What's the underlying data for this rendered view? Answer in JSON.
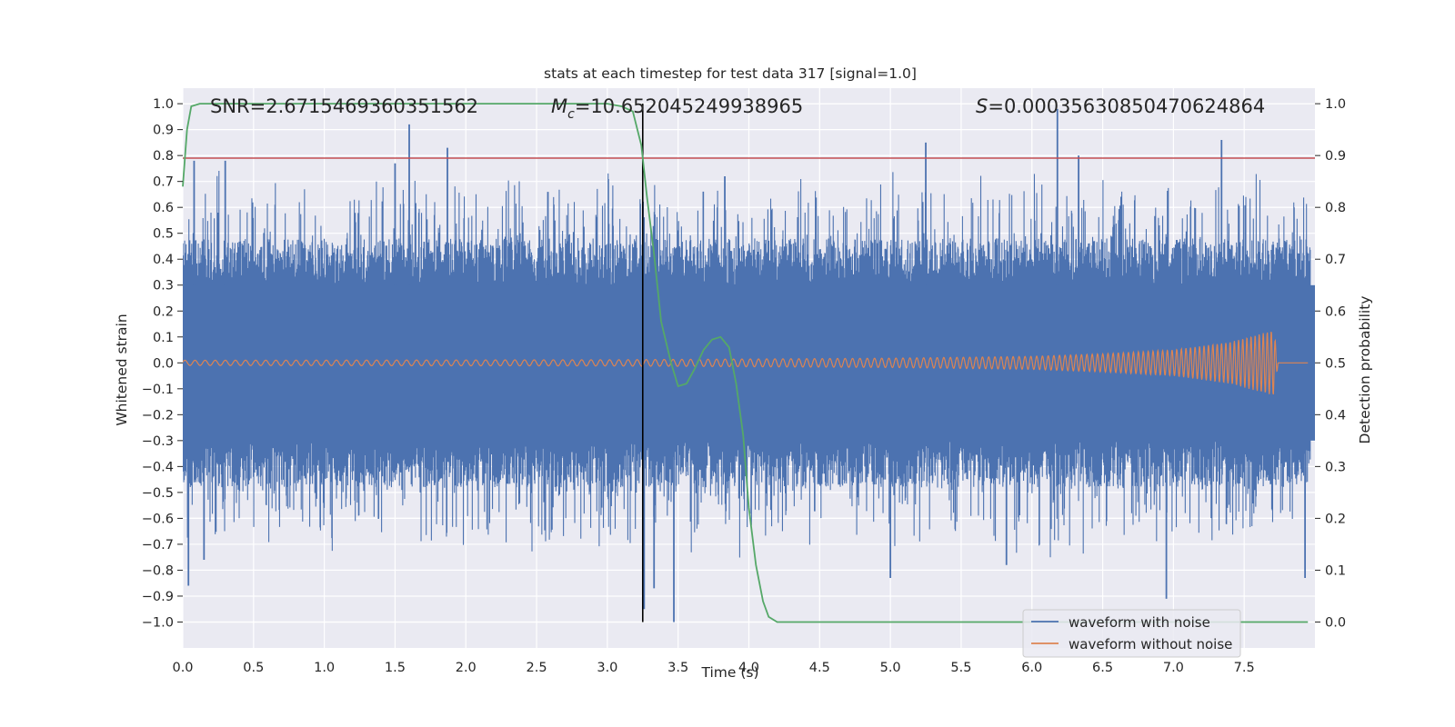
{
  "chart_data": {
    "type": "line",
    "title": "stats at each timestep for test data 317 [signal=1.0]",
    "xlabel": "Time (s)",
    "ylabel_left": "Whitened strain",
    "ylabel_right": "Detection probability",
    "xlim": [
      0.0,
      8.0
    ],
    "ylim_left": [
      -1.1,
      1.06
    ],
    "ylim_right": [
      -0.05,
      1.03
    ],
    "xticks": [
      0.0,
      0.5,
      1.0,
      1.5,
      2.0,
      2.5,
      3.0,
      3.5,
      4.0,
      4.5,
      5.0,
      5.5,
      6.0,
      6.5,
      7.0,
      7.5
    ],
    "yticks_left": [
      1.0,
      0.9,
      0.8,
      0.7,
      0.6,
      0.5,
      0.4,
      0.3,
      0.2,
      0.1,
      0.0,
      -0.1,
      -0.2,
      -0.3,
      -0.4,
      -0.5,
      -0.6,
      -0.7,
      -0.8,
      -0.9,
      -1.0
    ],
    "yticks_right": [
      1.0,
      0.9,
      0.8,
      0.7,
      0.6,
      0.5,
      0.4,
      0.3,
      0.2,
      0.1,
      0.0
    ],
    "grid": true,
    "annotations": {
      "snr": "SNR=2.6715469360351562",
      "mc_symbol": "M",
      "mc_sub": "c",
      "mc_value": "=10.652045249938965",
      "s_symbol": "S",
      "s_value": "=0.0003563085047062486​4"
    },
    "legend": {
      "placement": "bottom-right",
      "entries": [
        "waveform with noise",
        "waveform without noise"
      ]
    },
    "series": [
      {
        "name": "waveform with noise",
        "axis": "left",
        "color": "#4c72b0",
        "note_peaks": [
          [
            0.04,
            -0.86
          ],
          [
            0.08,
            0.78
          ],
          [
            0.15,
            -0.76
          ],
          [
            0.3,
            0.78
          ],
          [
            1.5,
            0.77
          ],
          [
            1.6,
            0.92
          ],
          [
            1.87,
            0.83
          ],
          [
            2.58,
            0.66
          ],
          [
            3.26,
            -0.95
          ],
          [
            3.33,
            -0.87
          ],
          [
            3.47,
            -1.0
          ],
          [
            3.83,
            0.72
          ],
          [
            5.0,
            -0.83
          ],
          [
            5.25,
            0.85
          ],
          [
            5.82,
            -0.78
          ],
          [
            6.18,
            0.98
          ],
          [
            6.33,
            0.8
          ],
          [
            6.95,
            -0.91
          ],
          [
            7.34,
            0.86
          ],
          [
            7.93,
            -0.83
          ]
        ],
        "band_amplitude": 0.3
      },
      {
        "name": "waveform without noise",
        "axis": "left",
        "color": "#dd8452",
        "envelope": [
          [
            0.0,
            0.01
          ],
          [
            3.0,
            0.012
          ],
          [
            5.0,
            0.018
          ],
          [
            6.0,
            0.025
          ],
          [
            6.5,
            0.035
          ],
          [
            7.0,
            0.05
          ],
          [
            7.4,
            0.08
          ],
          [
            7.6,
            0.11
          ],
          [
            7.71,
            0.125
          ],
          [
            7.74,
            0.0
          ]
        ]
      },
      {
        "name": "",
        "axis": "right",
        "color": "#55a868",
        "x": [
          0.0,
          0.03,
          0.06,
          0.12,
          0.3,
          1.0,
          2.0,
          3.0,
          3.1,
          3.18,
          3.24,
          3.28,
          3.33,
          3.38,
          3.45,
          3.5,
          3.56,
          3.62,
          3.68,
          3.74,
          3.8,
          3.86,
          3.91,
          3.96,
          4.0,
          4.05,
          4.1,
          4.14,
          4.2,
          4.3,
          5.0,
          6.0,
          7.0,
          7.95
        ],
        "y": [
          0.84,
          0.95,
          0.995,
          1.0,
          1.0,
          1.0,
          1.0,
          1.0,
          0.995,
          0.985,
          0.92,
          0.82,
          0.71,
          0.58,
          0.5,
          0.455,
          0.46,
          0.49,
          0.525,
          0.545,
          0.55,
          0.53,
          0.46,
          0.36,
          0.22,
          0.11,
          0.04,
          0.01,
          0.0,
          0.0,
          0.0,
          0.0,
          0.0,
          0.0
        ]
      }
    ],
    "hlines": [
      {
        "axis": "left",
        "y": 0.79,
        "color": "#c44e52"
      }
    ],
    "vlines": [
      {
        "x": 3.25,
        "ymin": -1.0,
        "ymax": 1.0,
        "color": "#000000"
      }
    ]
  }
}
